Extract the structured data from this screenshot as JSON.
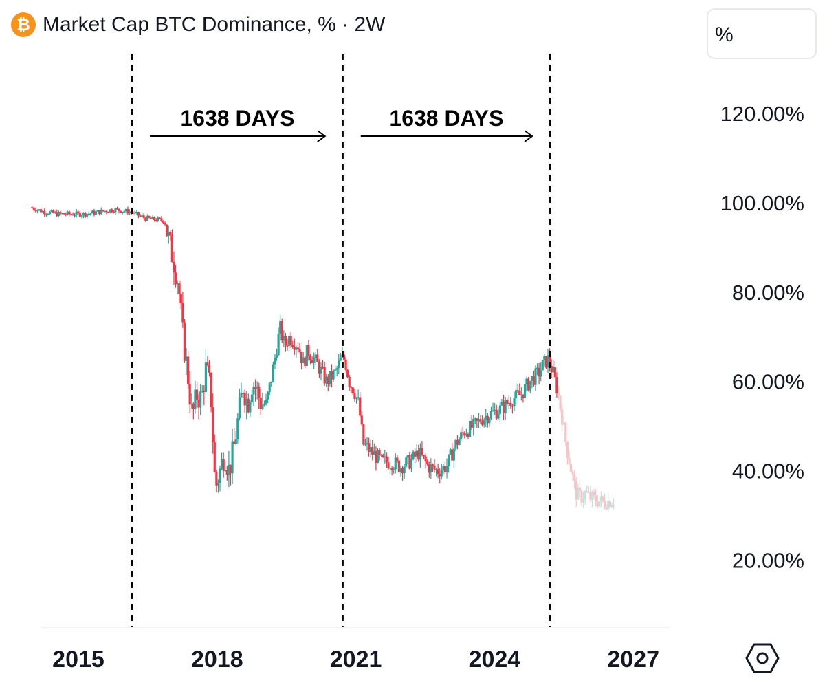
{
  "header": {
    "coin_symbol": "₿",
    "title": "Market Cap BTC Dominance, % · 2W"
  },
  "scale_selector": {
    "label": "%"
  },
  "colors": {
    "up": "#26a69a",
    "down": "#f23645",
    "projection": "#f7c5c5",
    "projection_up": "#bfe3de"
  },
  "chart_data": {
    "type": "candlestick",
    "title": "Market Cap BTC Dominance, % · 2W",
    "ylabel": "%",
    "ylim": [
      5,
      130
    ],
    "xlim": [
      2013.9,
      2027.8
    ],
    "y_ticks": [
      "120.00%",
      "100.00%",
      "80.00%",
      "60.00%",
      "40.00%",
      "20.00%"
    ],
    "y_tick_values": [
      120,
      100,
      80,
      60,
      40,
      20
    ],
    "x_ticks": [
      "2015",
      "2018",
      "2021",
      "2024",
      "2027"
    ],
    "x_tick_values": [
      2015,
      2018,
      2021,
      2024,
      2027
    ],
    "cycle_markers": [
      2016.16,
      2020.72,
      2025.2
    ],
    "annotations": [
      {
        "text": "1638 DAYS",
        "from": 2016.16,
        "to": 2020.72
      },
      {
        "text": "1638 DAYS",
        "from": 2020.72,
        "to": 2025.2
      }
    ],
    "series": [
      {
        "name": "BTC Dominance",
        "points": [
          [
            2014.0,
            99
          ],
          [
            2014.3,
            98
          ],
          [
            2014.6,
            97.5
          ],
          [
            2014.9,
            97.5
          ],
          [
            2015.2,
            97.5
          ],
          [
            2015.5,
            98
          ],
          [
            2015.8,
            98.5
          ],
          [
            2016.16,
            98
          ],
          [
            2016.5,
            96.5
          ],
          [
            2016.9,
            96
          ],
          [
            2017.1,
            87
          ],
          [
            2017.2,
            82
          ],
          [
            2017.3,
            70
          ],
          [
            2017.4,
            62
          ],
          [
            2017.5,
            52
          ],
          [
            2017.6,
            57
          ],
          [
            2017.7,
            56
          ],
          [
            2017.8,
            63
          ],
          [
            2017.9,
            58
          ],
          [
            2018.0,
            36
          ],
          [
            2018.1,
            40
          ],
          [
            2018.2,
            44
          ],
          [
            2018.3,
            40
          ],
          [
            2018.4,
            45
          ],
          [
            2018.5,
            52
          ],
          [
            2018.6,
            59
          ],
          [
            2018.7,
            55
          ],
          [
            2018.8,
            60
          ],
          [
            2018.9,
            58
          ],
          [
            2019.0,
            55
          ],
          [
            2019.1,
            55
          ],
          [
            2019.2,
            60
          ],
          [
            2019.3,
            66
          ],
          [
            2019.4,
            72
          ],
          [
            2019.5,
            68
          ],
          [
            2019.6,
            70
          ],
          [
            2019.8,
            68
          ],
          [
            2019.9,
            64
          ],
          [
            2020.0,
            67
          ],
          [
            2020.2,
            64
          ],
          [
            2020.4,
            60
          ],
          [
            2020.6,
            62
          ],
          [
            2020.72,
            65
          ],
          [
            2020.8,
            65
          ],
          [
            2020.9,
            60
          ],
          [
            2021.0,
            58
          ],
          [
            2021.1,
            55
          ],
          [
            2021.2,
            46
          ],
          [
            2021.4,
            44
          ],
          [
            2021.6,
            42
          ],
          [
            2021.8,
            42
          ],
          [
            2022.0,
            41
          ],
          [
            2022.2,
            42
          ],
          [
            2022.4,
            44
          ],
          [
            2022.6,
            41
          ],
          [
            2022.8,
            40
          ],
          [
            2023.0,
            41
          ],
          [
            2023.2,
            46
          ],
          [
            2023.4,
            49
          ],
          [
            2023.6,
            50
          ],
          [
            2023.8,
            52
          ],
          [
            2024.0,
            53
          ],
          [
            2024.2,
            54
          ],
          [
            2024.4,
            56
          ],
          [
            2024.6,
            57
          ],
          [
            2024.8,
            60
          ],
          [
            2025.0,
            62
          ],
          [
            2025.1,
            64
          ],
          [
            2025.2,
            65
          ],
          [
            2025.3,
            62
          ],
          [
            2025.4,
            58
          ],
          [
            2025.5,
            52
          ],
          [
            2025.6,
            45
          ],
          [
            2025.7,
            40
          ],
          [
            2025.8,
            35
          ],
          [
            2025.9,
            34
          ],
          [
            2026.0,
            35
          ],
          [
            2026.1,
            34
          ],
          [
            2026.2,
            33.5
          ],
          [
            2026.4,
            33
          ],
          [
            2026.6,
            33.5
          ]
        ]
      }
    ]
  }
}
